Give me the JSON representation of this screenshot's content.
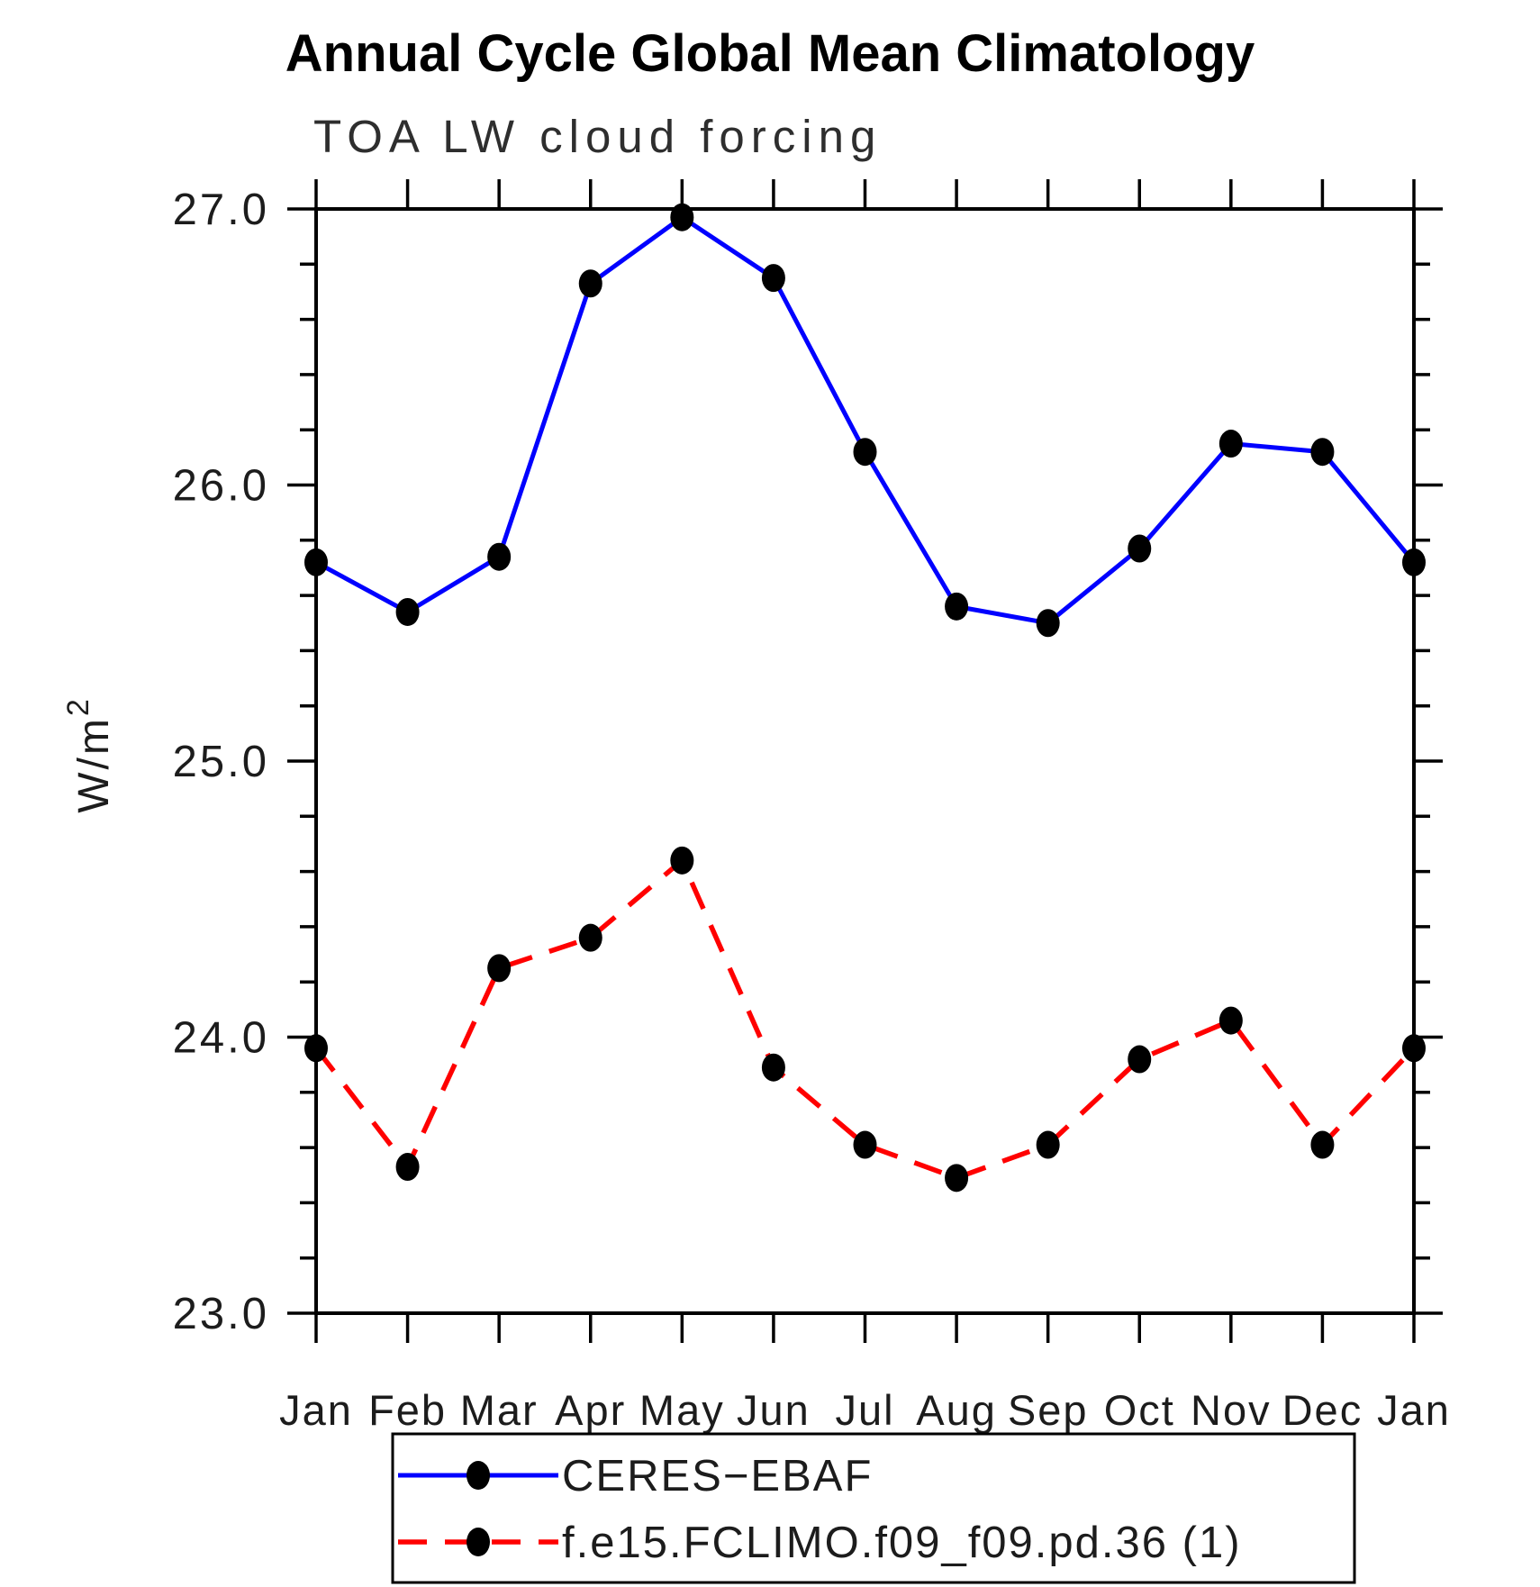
{
  "page": {
    "background": "#ffffff"
  },
  "chart_data": {
    "type": "line",
    "title": "Annual Cycle Global Mean Climatology",
    "subtitle": "TOA LW cloud forcing",
    "ylabel": "W/m²",
    "xlabel": "",
    "categories": [
      "Jan",
      "Feb",
      "Mar",
      "Apr",
      "May",
      "Jun",
      "Jul",
      "Aug",
      "Sep",
      "Oct",
      "Nov",
      "Dec",
      "Jan"
    ],
    "series": [
      {
        "name": "CERES−EBAF",
        "style": "solid",
        "color": "#0000ff",
        "values": [
          25.72,
          25.54,
          25.74,
          26.73,
          26.97,
          26.75,
          26.12,
          25.56,
          25.5,
          25.77,
          26.15,
          26.12,
          25.72
        ]
      },
      {
        "name": "f.e15.FCLIMO.f09_f09.pd.36 (1)",
        "style": "dashed",
        "color": "#ff0000",
        "values": [
          23.96,
          23.53,
          24.25,
          24.36,
          24.64,
          23.89,
          23.61,
          23.49,
          23.61,
          23.92,
          24.06,
          23.61,
          23.96
        ]
      }
    ],
    "marker": {
      "shape": "ellipse",
      "color": "#000000"
    },
    "ylim": [
      23.0,
      27.0
    ],
    "ytick_major": 1.0,
    "ytick_minor": 0.2,
    "ytick_labels": [
      "23.0",
      "24.0",
      "25.0",
      "26.0",
      "27.0"
    ],
    "grid": "off",
    "legend_position": "bottom",
    "axis_color": "#000000",
    "tick_label_color": "#1c1c1c"
  }
}
